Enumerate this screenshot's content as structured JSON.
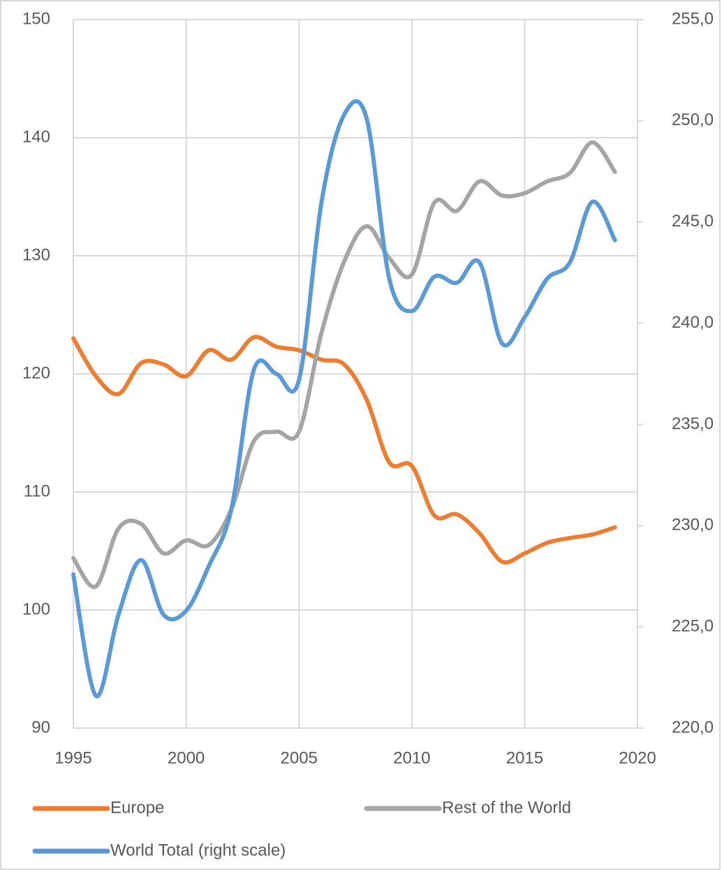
{
  "chart_data": {
    "type": "line",
    "x": [
      1995,
      1996,
      1997,
      1998,
      1999,
      2000,
      2001,
      2002,
      2003,
      2004,
      2005,
      2006,
      2007,
      2008,
      2009,
      2010,
      2011,
      2012,
      2013,
      2014,
      2015,
      2016,
      2017,
      2018,
      2019
    ],
    "series": [
      {
        "name": "Europe",
        "color": "#ed7d31",
        "values": [
          123,
          119.8,
          118.3,
          120.9,
          120.8,
          119.8,
          122,
          121.2,
          123.1,
          122.3,
          122,
          121.2,
          120.8,
          117.8,
          112.5,
          112.2,
          108,
          108.1,
          106.5,
          104.1,
          104.8,
          105.7,
          106.1,
          106.4,
          107
        ]
      },
      {
        "name": "Rest of the World",
        "color": "#a5a5a5",
        "values": [
          104.4,
          102,
          106.9,
          107.3,
          104.8,
          105.9,
          105.5,
          108.5,
          114.3,
          115.1,
          115.1,
          123.5,
          129.5,
          132.5,
          129.8,
          128.4,
          134.5,
          133.8,
          136.3,
          135.1,
          135.3,
          136.3,
          137,
          139.6,
          137.1
        ]
      },
      {
        "name": "World Total (right scale)",
        "color": "#5b9bd5",
        "axis": "y2",
        "values": [
          227.6,
          221.6,
          225.6,
          228.3,
          225.6,
          225.8,
          228,
          230.8,
          237.7,
          237.5,
          237.2,
          246,
          250.3,
          250.1,
          242.2,
          240.6,
          242.3,
          242,
          243,
          239,
          240.3,
          242.2,
          243,
          246,
          244.1
        ]
      }
    ],
    "xlim": [
      1995,
      2020
    ],
    "xticks": [
      1995,
      2000,
      2005,
      2010,
      2015,
      2020
    ],
    "ylim": [
      90,
      150
    ],
    "yticks": [
      90,
      100,
      110,
      120,
      130,
      140,
      150
    ],
    "y2lim": [
      220,
      255
    ],
    "y2ticks": [
      {
        "value": 220,
        "label": "220,0"
      },
      {
        "value": 225,
        "label": "225,0"
      },
      {
        "value": 230,
        "label": "230,0"
      },
      {
        "value": 235,
        "label": "235,0"
      },
      {
        "value": 240,
        "label": "240,0"
      },
      {
        "value": 245,
        "label": "245,0"
      },
      {
        "value": 250,
        "label": "250,0"
      },
      {
        "value": 255,
        "label": "255,0"
      }
    ],
    "grid": true,
    "legend": "bottom"
  }
}
